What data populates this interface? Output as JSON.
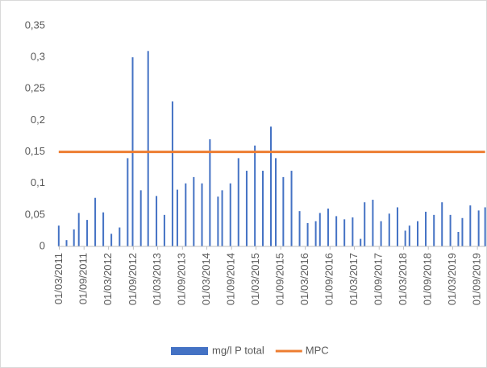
{
  "chart_data": {
    "type": "bar",
    "x": [
      "25/02/2011",
      "24/04/2011",
      "18/06/2011",
      "24/07/2011",
      "24/09/2011",
      "23/11/2011",
      "22/01/2012",
      "22/03/2012",
      "22/05/2012",
      "21/07/2012",
      "27/08/2012",
      "27/10/2012",
      "20/12/2012",
      "20/02/2013",
      "20/04/2013",
      "19/06/2013",
      "25/07/2013",
      "25/09/2013",
      "24/11/2013",
      "24/01/2014",
      "24/03/2014",
      "23/05/2014",
      "23/06/2014",
      "23/08/2014",
      "22/10/2014",
      "22/12/2014",
      "21/02/2015",
      "21/04/2015",
      "20/06/2015",
      "26/07/2015",
      "20/09/2015",
      "20/11/2015",
      "19/01/2016",
      "19/03/2016",
      "18/05/2016",
      "18/06/2016",
      "18/08/2016",
      "18/10/2016",
      "17/12/2016",
      "16/02/2017",
      "16/04/2017",
      "16/05/2017",
      "16/07/2017",
      "15/09/2017",
      "15/11/2017",
      "15/01/2018",
      "14/03/2018",
      "14/04/2018",
      "14/06/2018",
      "13/08/2018",
      "13/10/2018",
      "12/12/2018",
      "12/02/2019",
      "12/04/2019",
      "12/05/2019",
      "10/07/2019",
      "10/09/2019",
      "28/10/2019"
    ],
    "series": [
      {
        "name": "mg/l P total",
        "color": "#4472c4",
        "type": "bar",
        "values": [
          0.033,
          0.01,
          0.027,
          0.053,
          0.042,
          0.077,
          0.054,
          0.02,
          0.03,
          0.14,
          0.3,
          0.089,
          0.31,
          0.08,
          0.05,
          0.23,
          0.09,
          0.1,
          0.11,
          0.1,
          0.17,
          0.079,
          0.089,
          0.1,
          0.14,
          0.12,
          0.16,
          0.12,
          0.19,
          0.14,
          0.11,
          0.12,
          0.056,
          0.037,
          0.04,
          0.053,
          0.06,
          0.048,
          0.043,
          0.046,
          0.012,
          0.07,
          0.074,
          0.04,
          0.052,
          0.062,
          0.025,
          0.033,
          0.04,
          0.055,
          0.05,
          0.07,
          0.05,
          0.023,
          0.045,
          0.065,
          0.057,
          0.062
        ]
      },
      {
        "name": "MPC",
        "color": "#ed7d31",
        "type": "line",
        "values": [
          0.15,
          0.15,
          0.15,
          0.15,
          0.15,
          0.15,
          0.15,
          0.15,
          0.15,
          0.15,
          0.15,
          0.15,
          0.15,
          0.15,
          0.15,
          0.15,
          0.15,
          0.15,
          0.15,
          0.15,
          0.15,
          0.15,
          0.15,
          0.15,
          0.15,
          0.15,
          0.15,
          0.15,
          0.15,
          0.15,
          0.15,
          0.15,
          0.15,
          0.15,
          0.15,
          0.15,
          0.15,
          0.15,
          0.15,
          0.15,
          0.15,
          0.15,
          0.15,
          0.15,
          0.15,
          0.15,
          0.15,
          0.15,
          0.15,
          0.15,
          0.15,
          0.15,
          0.15,
          0.15,
          0.15,
          0.15,
          0.15,
          0.15
        ]
      }
    ],
    "xlim": [
      "20/02/2011",
      "30/10/2019"
    ],
    "xticks": [
      "01/03/2011",
      "01/09/2011",
      "01/03/2012",
      "01/09/2012",
      "01/03/2013",
      "01/09/2013",
      "01/03/2014",
      "01/09/2014",
      "01/03/2015",
      "01/09/2015",
      "01/03/2016",
      "01/09/2016",
      "01/03/2017",
      "01/09/2017",
      "01/03/2018",
      "01/09/2018",
      "01/03/2019",
      "01/09/2019"
    ],
    "ylim": [
      0,
      0.35
    ],
    "yticks": [
      0,
      {
        "value": 0.05,
        "label": "0,05"
      },
      {
        "value": 0.1,
        "label": "0,1"
      },
      {
        "value": 0.15,
        "label": "0,15"
      },
      {
        "value": 0.2,
        "label": "0,2"
      },
      {
        "value": 0.25,
        "label": "0,25"
      },
      {
        "value": 0.3,
        "label": "0,3"
      },
      {
        "value": 0.35,
        "label": "0,35"
      }
    ],
    "grid": false,
    "legend": "bottom"
  }
}
